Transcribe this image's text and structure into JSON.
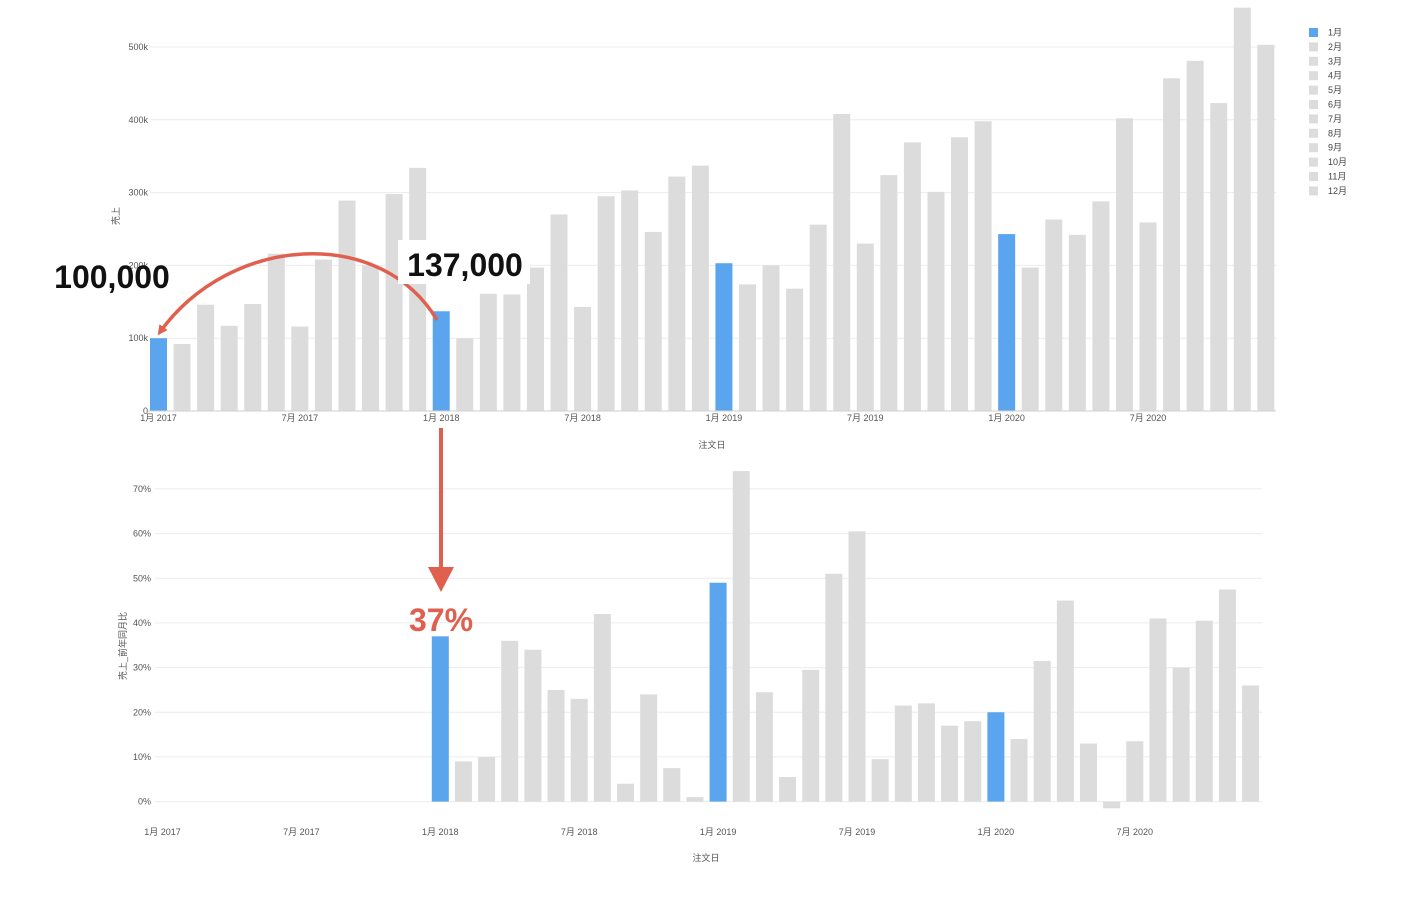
{
  "colors": {
    "highlight": "#5aa5ee",
    "other": "#dcdcdc",
    "grid": "#ececec",
    "annotation": "#e0604f"
  },
  "legend": [
    "1月",
    "2月",
    "3月",
    "4月",
    "5月",
    "6月",
    "7月",
    "8月",
    "9月",
    "10月",
    "11月",
    "12月"
  ],
  "annotations": {
    "left_value": "100,000",
    "right_value": "137,000",
    "pct": "37%"
  },
  "chart_data": [
    {
      "type": "bar",
      "xlabel": "注文日",
      "ylabel": "売上",
      "ylim": [
        0,
        550000
      ],
      "yticks": [
        "0",
        "100k",
        "200k",
        "300k",
        "400k",
        "500k"
      ],
      "xticks": [
        "1月 2017",
        "7月 2017",
        "1月 2018",
        "7月 2018",
        "1月 2019",
        "7月 2019",
        "1月 2020",
        "7月 2020"
      ],
      "highlight_month": "1月",
      "values": [
        100000,
        92000,
        146000,
        117000,
        147000,
        216000,
        116000,
        208000,
        289000,
        200000,
        298000,
        334000,
        137000,
        100000,
        161000,
        160000,
        197000,
        270000,
        143000,
        295000,
        303000,
        246000,
        322000,
        337000,
        203000,
        174000,
        200000,
        168000,
        256000,
        408000,
        230000,
        324000,
        369000,
        301000,
        376000,
        398000,
        243000,
        197000,
        263000,
        242000,
        288000,
        402000,
        259000,
        457000,
        481000,
        423000,
        554000,
        503000
      ]
    },
    {
      "type": "bar",
      "xlabel": "注文日",
      "ylabel": "売上_前年同月比",
      "ylim": [
        -3,
        72
      ],
      "yticks": [
        "0%",
        "10%",
        "20%",
        "30%",
        "40%",
        "50%",
        "60%",
        "70%"
      ],
      "xticks": [
        "1月 2017",
        "7月 2017",
        "1月 2018",
        "7月 2018",
        "1月 2019",
        "7月 2019",
        "1月 2020",
        "7月 2020"
      ],
      "highlight_month": "1月",
      "values": [
        null,
        null,
        null,
        null,
        null,
        null,
        null,
        null,
        null,
        null,
        null,
        null,
        37,
        9,
        10,
        36,
        34,
        25,
        23,
        42,
        4,
        24,
        7.5,
        1,
        49,
        74,
        24.5,
        5.5,
        29.5,
        51,
        60.5,
        9.5,
        21.5,
        22,
        17,
        18,
        20,
        14,
        31.5,
        45,
        13,
        -1.5,
        13.5,
        41,
        30,
        40.5,
        47.5,
        26
      ]
    }
  ]
}
